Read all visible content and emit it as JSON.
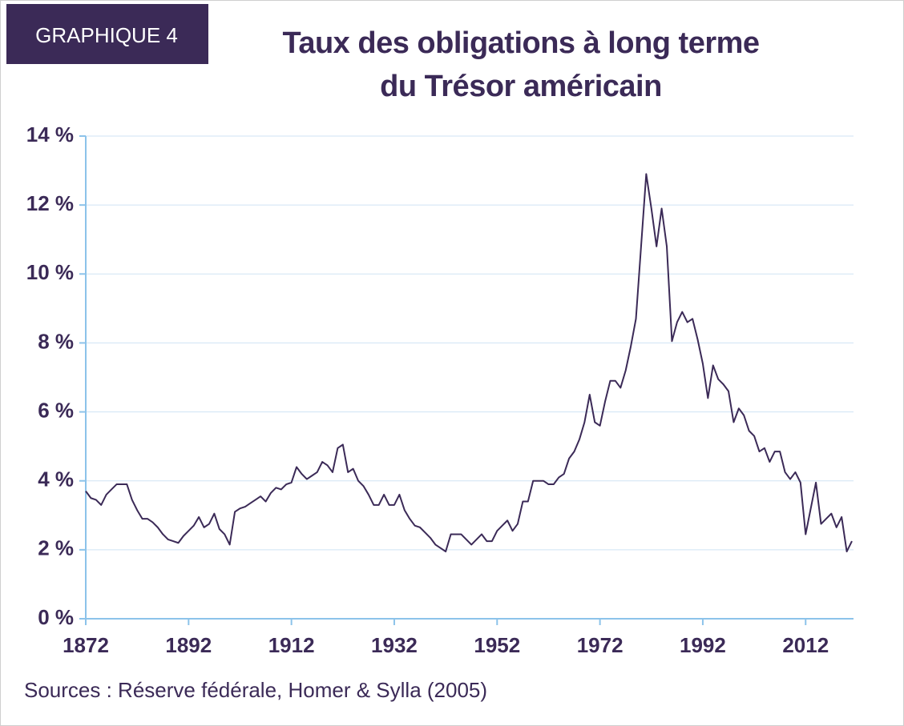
{
  "chart_data": {
    "type": "line",
    "label": "GRAPHIQUE 4",
    "title": "Taux des obligations à long terme du Trésor américain",
    "source": "Sources : Réserve fédérale, Homer & Sylla (2005)",
    "color": "#3b2a57",
    "grid": true,
    "xlim": [
      1872,
      2021
    ],
    "xticks": [
      1872,
      1892,
      1912,
      1932,
      1952,
      1972,
      1992,
      2012
    ],
    "ylim": [
      0,
      14
    ],
    "yticks": [
      {
        "value": 0,
        "label": "0 %"
      },
      {
        "value": 2,
        "label": "2 %"
      },
      {
        "value": 4,
        "label": "4 %"
      },
      {
        "value": 6,
        "label": "6 %"
      },
      {
        "value": 8,
        "label": "8 %"
      },
      {
        "value": 10,
        "label": "10 %"
      },
      {
        "value": 12,
        "label": "12 %"
      },
      {
        "value": 14,
        "label": "14 %"
      }
    ],
    "x": [
      1872,
      1873,
      1874,
      1875,
      1876,
      1877,
      1878,
      1879,
      1880,
      1881,
      1882,
      1883,
      1884,
      1885,
      1886,
      1887,
      1888,
      1889,
      1890,
      1891,
      1892,
      1893,
      1894,
      1895,
      1896,
      1897,
      1898,
      1899,
      1900,
      1901,
      1902,
      1903,
      1904,
      1905,
      1906,
      1907,
      1908,
      1909,
      1910,
      1911,
      1912,
      1913,
      1914,
      1915,
      1916,
      1917,
      1918,
      1919,
      1920,
      1921,
      1922,
      1923,
      1924,
      1925,
      1926,
      1927,
      1928,
      1929,
      1930,
      1931,
      1932,
      1933,
      1934,
      1935,
      1936,
      1937,
      1938,
      1939,
      1940,
      1941,
      1942,
      1943,
      1944,
      1945,
      1946,
      1947,
      1948,
      1949,
      1950,
      1951,
      1952,
      1953,
      1954,
      1955,
      1956,
      1957,
      1958,
      1959,
      1960,
      1961,
      1962,
      1963,
      1964,
      1965,
      1966,
      1967,
      1968,
      1969,
      1970,
      1971,
      1972,
      1973,
      1974,
      1975,
      1976,
      1977,
      1978,
      1979,
      1980,
      1981,
      1982,
      1983,
      1984,
      1985,
      1986,
      1987,
      1988,
      1989,
      1990,
      1991,
      1992,
      1993,
      1994,
      1995,
      1996,
      1997,
      1998,
      1999,
      2000,
      2001,
      2002,
      2003,
      2004,
      2005,
      2006,
      2007,
      2008,
      2009,
      2010,
      2011,
      2012,
      2013,
      2014,
      2015,
      2016,
      2017,
      2018,
      2019,
      2020,
      2021
    ],
    "values": [
      3.7,
      3.5,
      3.45,
      3.3,
      3.6,
      3.75,
      3.9,
      3.9,
      3.9,
      3.45,
      3.15,
      2.9,
      2.9,
      2.8,
      2.65,
      2.45,
      2.3,
      2.25,
      2.2,
      2.4,
      2.55,
      2.7,
      2.95,
      2.65,
      2.75,
      3.05,
      2.6,
      2.45,
      2.15,
      3.1,
      3.2,
      3.25,
      3.35,
      3.45,
      3.55,
      3.4,
      3.65,
      3.8,
      3.75,
      3.9,
      3.95,
      4.4,
      4.2,
      4.05,
      4.15,
      4.25,
      4.55,
      4.45,
      4.25,
      4.95,
      5.05,
      4.25,
      4.35,
      4.0,
      3.85,
      3.6,
      3.3,
      3.3,
      3.6,
      3.3,
      3.3,
      3.6,
      3.15,
      2.9,
      2.7,
      2.65,
      2.5,
      2.35,
      2.15,
      2.05,
      1.95,
      2.45,
      2.45,
      2.45,
      2.3,
      2.15,
      2.3,
      2.45,
      2.25,
      2.25,
      2.55,
      2.7,
      2.85,
      2.55,
      2.75,
      3.4,
      3.4,
      4.0,
      4.0,
      4.0,
      3.9,
      3.9,
      4.1,
      4.2,
      4.65,
      4.85,
      5.2,
      5.7,
      6.5,
      5.7,
      5.6,
      6.3,
      6.9,
      6.9,
      6.7,
      7.2,
      7.9,
      8.7,
      10.8,
      12.9,
      11.9,
      10.8,
      11.9,
      10.8,
      8.05,
      8.6,
      8.9,
      8.6,
      8.7,
      8.1,
      7.4,
      6.4,
      7.35,
      6.95,
      6.8,
      6.6,
      5.7,
      6.1,
      5.9,
      5.45,
      5.3,
      4.85,
      4.95,
      4.55,
      4.85,
      4.85,
      4.25,
      4.05,
      4.25,
      3.95,
      2.45,
      3.2,
      3.95,
      2.75,
      2.9,
      3.05,
      2.65,
      2.95,
      1.95,
      2.25
    ]
  }
}
